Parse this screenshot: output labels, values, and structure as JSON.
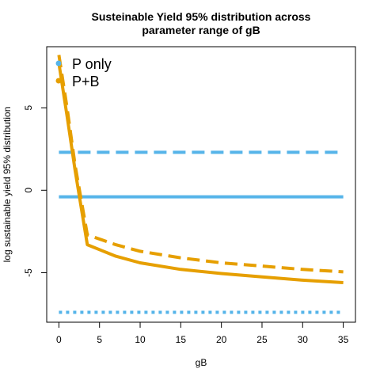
{
  "chart_data": {
    "type": "line",
    "title_lines": [
      "Susteinable Yield 95% distribution across",
      "parameter range of gB"
    ],
    "xlabel": "gB",
    "ylabel": "log sustainable yield 95% distribution",
    "xlim": [
      -1.5,
      36.5
    ],
    "ylim": [
      -8,
      8.7
    ],
    "xticks": [
      0,
      5,
      10,
      15,
      20,
      25,
      30,
      35
    ],
    "yticks": [
      -5,
      0,
      5
    ],
    "legend": {
      "position": "top-left",
      "entries": [
        {
          "label": "P only",
          "color": "#56B4E9"
        },
        {
          "label": "P+B",
          "color": "#E69F00"
        }
      ]
    },
    "series": [
      {
        "group": "P only",
        "linestyle": "dashed",
        "color": "#56B4E9",
        "x": [
          0,
          35
        ],
        "y": [
          2.3,
          2.3
        ]
      },
      {
        "group": "P only",
        "linestyle": "solid",
        "color": "#56B4E9",
        "x": [
          0,
          35
        ],
        "y": [
          -0.4,
          -0.4
        ]
      },
      {
        "group": "P only",
        "linestyle": "dotted",
        "color": "#56B4E9",
        "x": [
          0,
          35
        ],
        "y": [
          -7.4,
          -7.4
        ]
      },
      {
        "group": "P+B",
        "linestyle": "solid",
        "color": "#E69F00",
        "x": [
          0,
          1,
          2,
          3.5,
          7,
          10,
          15,
          20,
          25,
          30,
          35
        ],
        "y": [
          7.7,
          4.5,
          1.2,
          -3.3,
          -4.0,
          -4.4,
          -4.8,
          -5.05,
          -5.25,
          -5.45,
          -5.6
        ]
      },
      {
        "group": "P+B",
        "linestyle": "dashed",
        "color": "#E69F00",
        "x": [
          0,
          1,
          2,
          3.5,
          7,
          10,
          15,
          20,
          25,
          30,
          35
        ],
        "y": [
          8.2,
          5.0,
          1.5,
          -2.7,
          -3.3,
          -3.7,
          -4.1,
          -4.4,
          -4.6,
          -4.8,
          -4.95
        ]
      }
    ]
  }
}
